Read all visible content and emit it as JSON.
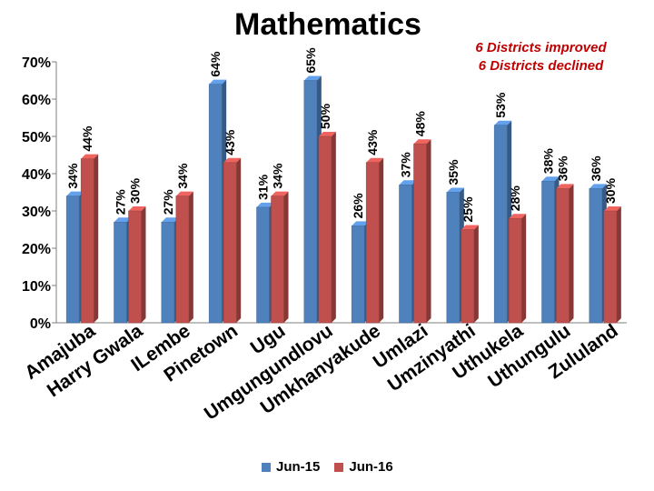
{
  "page": {
    "title": "Mathematics",
    "notes": [
      "6 Districts improved",
      "6 Districts declined"
    ]
  },
  "chart_data": {
    "type": "bar",
    "title": "Mathematics",
    "xlabel": "",
    "ylabel": "",
    "ylim": [
      0,
      70
    ],
    "yticks": [
      "0%",
      "10%",
      "20%",
      "30%",
      "40%",
      "50%",
      "60%",
      "70%"
    ],
    "grid": false,
    "legend_position": "bottom",
    "categories": [
      "Amajuba",
      "Harry Gwala",
      "ILembe",
      "Pinetown",
      "Ugu",
      "Umgungundlovu",
      "Umkhanyakude",
      "Umlazi",
      "Umzinyathi",
      "Uthukela",
      "Uthungulu",
      "Zululand"
    ],
    "series": [
      {
        "name": "Jun-15",
        "color": "#4f81bd",
        "values": [
          34,
          27,
          27,
          64,
          31,
          65,
          26,
          37,
          35,
          53,
          38,
          36
        ],
        "labels": [
          "34%",
          "27%",
          "27%",
          "64%",
          "31%",
          "65%",
          "26%",
          "37%",
          "35%",
          "53%",
          "38%",
          "36%"
        ]
      },
      {
        "name": "Jun-16",
        "color": "#c0504d",
        "values": [
          44,
          30,
          34,
          43,
          34,
          50,
          43,
          48,
          25,
          28,
          36,
          30
        ],
        "labels": [
          "44%",
          "30%",
          "34%",
          "43%",
          "34%",
          "50%",
          "43%",
          "48%",
          "25%",
          "28%",
          "36%",
          "30%"
        ]
      }
    ]
  }
}
